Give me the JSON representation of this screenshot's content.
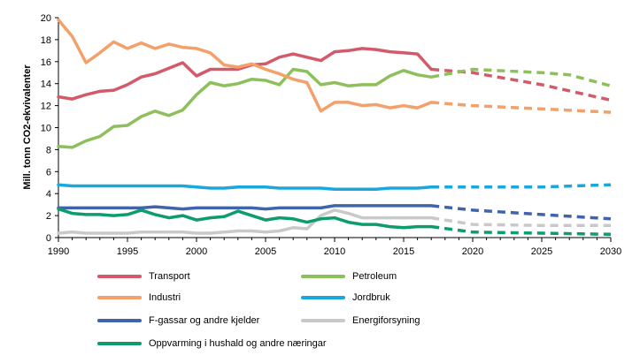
{
  "chart_data": {
    "type": "line",
    "title": "",
    "xlabel": "",
    "ylabel": "Mill. tonn CO2-ekvivalenter",
    "xlim": [
      1990,
      2030
    ],
    "ylim": [
      0,
      20
    ],
    "x_ticks": [
      1990,
      1995,
      2000,
      2005,
      2010,
      2015,
      2020,
      2025,
      2030
    ],
    "y_ticks": [
      0,
      2,
      4,
      6,
      8,
      10,
      12,
      14,
      16,
      18,
      20
    ],
    "historical_end": 2017,
    "series": [
      {
        "name": "Transport",
        "color": "#d25a6a",
        "x": [
          1990,
          1991,
          1992,
          1993,
          1994,
          1995,
          1996,
          1997,
          1998,
          1999,
          2000,
          2001,
          2002,
          2003,
          2004,
          2005,
          2006,
          2007,
          2008,
          2009,
          2010,
          2011,
          2012,
          2013,
          2014,
          2015,
          2016,
          2017
        ],
        "values": [
          12.8,
          12.6,
          13.0,
          13.3,
          13.4,
          13.9,
          14.6,
          14.9,
          15.4,
          15.9,
          14.7,
          15.3,
          15.3,
          15.3,
          15.7,
          15.8,
          16.4,
          16.7,
          16.4,
          16.1,
          16.9,
          17.0,
          17.2,
          17.1,
          16.9,
          16.8,
          16.7,
          15.3
        ],
        "projection_x": [
          2017,
          2020,
          2025,
          2030
        ],
        "projection_values": [
          15.3,
          15.0,
          13.9,
          12.5
        ]
      },
      {
        "name": "Petroleum",
        "color": "#8dc05a",
        "x": [
          1990,
          1991,
          1992,
          1993,
          1994,
          1995,
          1996,
          1997,
          1998,
          1999,
          2000,
          2001,
          2002,
          2003,
          2004,
          2005,
          2006,
          2007,
          2008,
          2009,
          2010,
          2011,
          2012,
          2013,
          2014,
          2015,
          2016,
          2017
        ],
        "values": [
          8.3,
          8.2,
          8.8,
          9.2,
          10.1,
          10.2,
          11.0,
          11.5,
          11.1,
          11.6,
          13.0,
          14.1,
          13.8,
          14.0,
          14.4,
          14.3,
          13.9,
          15.3,
          15.1,
          13.9,
          14.1,
          13.8,
          13.9,
          13.9,
          14.7,
          15.2,
          14.8,
          14.6
        ],
        "projection_x": [
          2017,
          2020,
          2025,
          2027,
          2030
        ],
        "projection_values": [
          14.6,
          15.3,
          15.0,
          14.8,
          13.8
        ]
      },
      {
        "name": "Industri",
        "color": "#f4a06a",
        "x": [
          1990,
          1991,
          1992,
          1993,
          1994,
          1995,
          1996,
          1997,
          1998,
          1999,
          2000,
          2001,
          2002,
          2003,
          2004,
          2005,
          2006,
          2007,
          2008,
          2009,
          2010,
          2011,
          2012,
          2013,
          2014,
          2015,
          2016,
          2017
        ],
        "values": [
          19.8,
          18.3,
          15.9,
          16.8,
          17.8,
          17.2,
          17.7,
          17.2,
          17.6,
          17.3,
          17.2,
          16.8,
          15.7,
          15.5,
          15.8,
          15.3,
          14.9,
          14.4,
          14.1,
          11.5,
          12.3,
          12.3,
          12.0,
          12.1,
          11.8,
          12.0,
          11.8,
          12.3
        ],
        "projection_x": [
          2017,
          2020,
          2025,
          2030
        ],
        "projection_values": [
          12.3,
          12.0,
          11.7,
          11.4
        ]
      },
      {
        "name": "Jordbruk",
        "color": "#1aa7de",
        "x": [
          1990,
          1991,
          1992,
          1993,
          1994,
          1995,
          1996,
          1997,
          1998,
          1999,
          2000,
          2001,
          2002,
          2003,
          2004,
          2005,
          2006,
          2007,
          2008,
          2009,
          2010,
          2011,
          2012,
          2013,
          2014,
          2015,
          2016,
          2017
        ],
        "values": [
          4.8,
          4.7,
          4.7,
          4.7,
          4.7,
          4.7,
          4.7,
          4.7,
          4.7,
          4.7,
          4.6,
          4.5,
          4.5,
          4.6,
          4.6,
          4.6,
          4.5,
          4.5,
          4.5,
          4.5,
          4.4,
          4.4,
          4.4,
          4.4,
          4.5,
          4.5,
          4.5,
          4.6
        ],
        "projection_x": [
          2017,
          2020,
          2025,
          2030
        ],
        "projection_values": [
          4.6,
          4.6,
          4.6,
          4.8
        ]
      },
      {
        "name": "F-gassar og andre kjelder",
        "color": "#3f63ad",
        "x": [
          1990,
          1991,
          1992,
          1993,
          1994,
          1995,
          1996,
          1997,
          1998,
          1999,
          2000,
          2001,
          2002,
          2003,
          2004,
          2005,
          2006,
          2007,
          2008,
          2009,
          2010,
          2011,
          2012,
          2013,
          2014,
          2015,
          2016,
          2017
        ],
        "values": [
          2.7,
          2.7,
          2.7,
          2.7,
          2.7,
          2.7,
          2.7,
          2.8,
          2.7,
          2.6,
          2.7,
          2.7,
          2.7,
          2.7,
          2.7,
          2.6,
          2.7,
          2.7,
          2.7,
          2.7,
          2.9,
          2.9,
          2.9,
          2.9,
          2.9,
          2.9,
          2.9,
          2.9
        ],
        "projection_x": [
          2017,
          2020,
          2025,
          2030
        ],
        "projection_values": [
          2.9,
          2.5,
          2.1,
          1.7
        ]
      },
      {
        "name": "Energiforsyning",
        "color": "#c9c9c9",
        "x": [
          1990,
          1991,
          1992,
          1993,
          1994,
          1995,
          1996,
          1997,
          1998,
          1999,
          2000,
          2001,
          2002,
          2003,
          2004,
          2005,
          2006,
          2007,
          2008,
          2009,
          2010,
          2011,
          2012,
          2013,
          2014,
          2015,
          2016,
          2017
        ],
        "values": [
          0.4,
          0.5,
          0.4,
          0.4,
          0.4,
          0.4,
          0.5,
          0.5,
          0.5,
          0.5,
          0.4,
          0.4,
          0.5,
          0.6,
          0.6,
          0.5,
          0.6,
          0.9,
          0.8,
          2.0,
          2.5,
          2.2,
          1.8,
          1.8,
          1.8,
          1.8,
          1.8,
          1.8
        ],
        "projection_x": [
          2017,
          2020,
          2025,
          2030
        ],
        "projection_values": [
          1.8,
          1.2,
          1.1,
          1.1
        ]
      },
      {
        "name": "Oppvarming i hushald og andre næringar",
        "color": "#0d9c6c",
        "x": [
          1990,
          1991,
          1992,
          1993,
          1994,
          1995,
          1996,
          1997,
          1998,
          1999,
          2000,
          2001,
          2002,
          2003,
          2004,
          2005,
          2006,
          2007,
          2008,
          2009,
          2010,
          2011,
          2012,
          2013,
          2014,
          2015,
          2016,
          2017
        ],
        "values": [
          2.6,
          2.2,
          2.1,
          2.1,
          2.0,
          2.1,
          2.5,
          2.1,
          1.8,
          2.0,
          1.6,
          1.8,
          1.9,
          2.4,
          2.0,
          1.6,
          1.8,
          1.7,
          1.4,
          1.7,
          1.8,
          1.4,
          1.2,
          1.2,
          1.0,
          0.9,
          1.0,
          1.0
        ],
        "projection_x": [
          2017,
          2020,
          2025,
          2030
        ],
        "projection_values": [
          1.0,
          0.5,
          0.4,
          0.3
        ]
      }
    ]
  },
  "legend": [
    {
      "label": "Transport",
      "color": "#d25a6a"
    },
    {
      "label": "Petroleum",
      "color": "#8dc05a"
    },
    {
      "label": "Industri",
      "color": "#f4a06a"
    },
    {
      "label": "Jordbruk",
      "color": "#1aa7de"
    },
    {
      "label": "F-gassar og andre kjelder",
      "color": "#3f63ad"
    },
    {
      "label": "Energiforsyning",
      "color": "#c9c9c9"
    },
    {
      "label": "Oppvarming i hushald og andre næringar",
      "color": "#0d9c6c"
    }
  ]
}
